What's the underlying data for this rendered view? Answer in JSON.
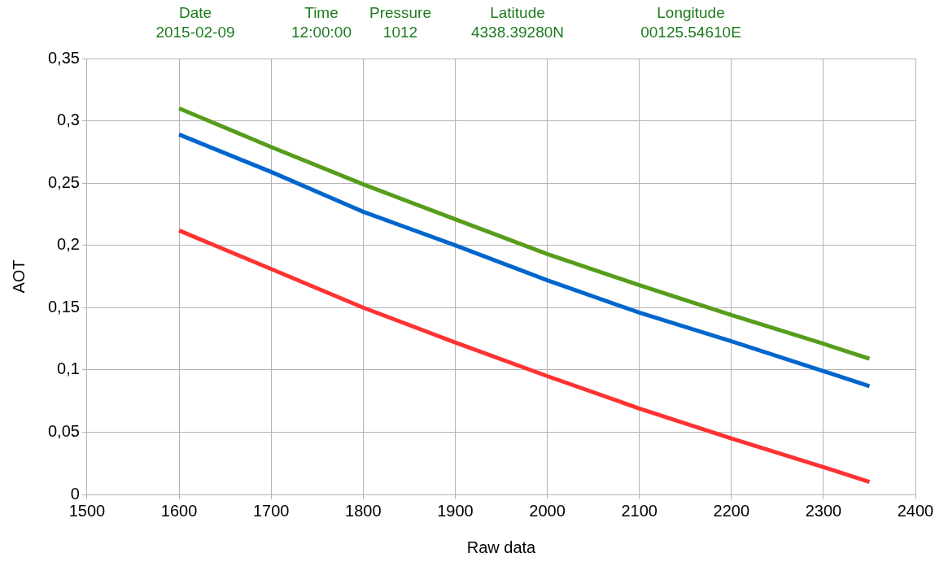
{
  "chart_data": {
    "type": "line",
    "xlabel": "Raw data",
    "ylabel": "AOT",
    "annotations": [
      "Date",
      "2015-02-09",
      "Time",
      "12:00:00",
      "Pressure",
      "1012",
      "Latitude",
      "4338.39280N",
      "Longitude",
      "00125.54610E"
    ],
    "x": [
      1600,
      1700,
      1800,
      1900,
      2000,
      2100,
      2200,
      2300,
      2350
    ],
    "series": [
      {
        "color": "#579d1c",
        "values": [
          0.31,
          0.279,
          0.249,
          0.221,
          0.193,
          0.168,
          0.144,
          0.121,
          0.109
        ]
      },
      {
        "color": "#0066cc",
        "values": [
          0.289,
          0.259,
          0.227,
          0.2,
          0.172,
          0.146,
          0.123,
          0.099,
          0.087
        ]
      },
      {
        "color": "#ff3333",
        "values": [
          0.212,
          0.181,
          0.15,
          0.122,
          0.095,
          0.069,
          0.045,
          0.022,
          0.01
        ]
      }
    ],
    "xlim": [
      1500,
      2400
    ],
    "xticks": [
      1500,
      1600,
      1700,
      1800,
      1900,
      2000,
      2100,
      2200,
      2300,
      2400
    ],
    "ylim": [
      0,
      0.35
    ],
    "yticks": [
      {
        "value": 0,
        "label": "0"
      },
      {
        "value": 0.05,
        "label": "0,05"
      },
      {
        "value": 0.1,
        "label": "0,1"
      },
      {
        "value": 0.15,
        "label": "0,15"
      },
      {
        "value": 0.2,
        "label": "0,2"
      },
      {
        "value": 0.25,
        "label": "0,25"
      },
      {
        "value": 0.3,
        "label": "0,3"
      },
      {
        "value": 0.35,
        "label": "0,35"
      }
    ],
    "grid": true,
    "legend": false,
    "marker": "none",
    "line_style": "solid"
  }
}
